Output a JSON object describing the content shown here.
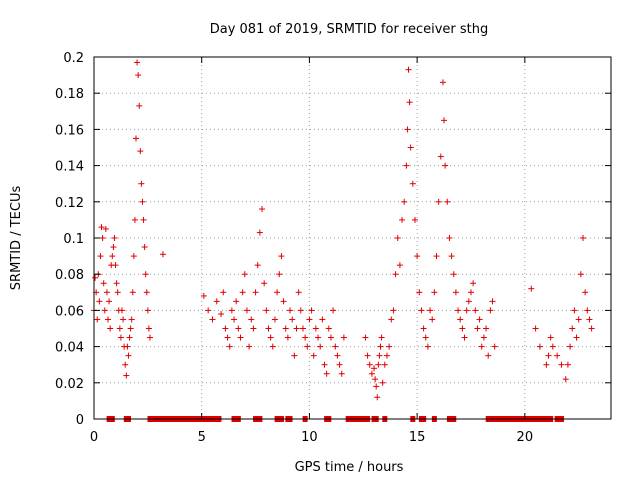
{
  "chart_data": {
    "type": "scatter",
    "title": "Day 081 of 2019, SRMTID for receiver sthg",
    "xlabel": "GPS time / hours",
    "ylabel": "SRMTID / TECUs",
    "xlim": [
      0,
      24
    ],
    "ylim": [
      0,
      0.2
    ],
    "xticks": [
      0,
      5,
      10,
      15,
      20
    ],
    "yticks": [
      0,
      0.02,
      0.04,
      0.06,
      0.08,
      0.1,
      0.12,
      0.14,
      0.16,
      0.18,
      0.2
    ],
    "ytick_labels": [
      "0",
      "0.02",
      "0.04",
      "0.06",
      "0.08",
      "0.1",
      "0.12",
      "0.14",
      "0.16",
      "0.18",
      "0.2"
    ],
    "grid": true,
    "color": "#e00000",
    "marker": "plus",
    "series": [
      {
        "name": "SRMTID",
        "x": [
          0.0,
          0.05,
          0.1,
          0.15,
          0.2,
          0.25,
          0.3,
          0.35,
          0.4,
          0.45,
          0.5,
          0.55,
          0.6,
          0.65,
          0.7,
          0.75,
          0.8,
          0.85,
          0.9,
          0.95,
          1.0,
          1.05,
          1.1,
          1.15,
          1.2,
          1.25,
          1.3,
          1.35,
          1.4,
          1.45,
          1.5,
          1.55,
          1.6,
          1.65,
          1.7,
          1.75,
          1.8,
          1.85,
          1.9,
          1.95,
          2.0,
          2.05,
          2.1,
          2.15,
          2.2,
          2.25,
          2.3,
          2.35,
          2.4,
          2.45,
          2.5,
          2.55,
          2.6,
          3.2,
          5.1,
          5.3,
          5.5,
          5.7,
          5.9,
          6.0,
          6.1,
          6.2,
          6.3,
          6.4,
          6.5,
          6.6,
          6.7,
          6.8,
          6.9,
          7.0,
          7.1,
          7.2,
          7.3,
          7.4,
          7.5,
          7.6,
          7.7,
          7.8,
          7.9,
          8.0,
          8.1,
          8.2,
          8.3,
          8.4,
          8.5,
          8.6,
          8.7,
          8.8,
          8.9,
          9.0,
          9.1,
          9.2,
          9.3,
          9.4,
          9.5,
          9.6,
          9.7,
          9.8,
          9.9,
          10.0,
          10.1,
          10.2,
          10.3,
          10.4,
          10.5,
          10.6,
          10.7,
          10.8,
          10.9,
          11.0,
          11.1,
          11.2,
          11.3,
          11.4,
          11.5,
          11.6,
          12.6,
          12.7,
          12.8,
          12.9,
          13.0,
          13.05,
          13.1,
          13.15,
          13.2,
          13.25,
          13.3,
          13.35,
          13.4,
          13.5,
          13.6,
          13.7,
          13.8,
          13.9,
          14.0,
          14.1,
          14.2,
          14.3,
          14.4,
          14.5,
          14.55,
          14.6,
          14.65,
          14.7,
          14.8,
          14.9,
          15.0,
          15.1,
          15.2,
          15.3,
          15.4,
          15.5,
          15.6,
          15.7,
          15.8,
          15.9,
          16.0,
          16.1,
          16.2,
          16.25,
          16.3,
          16.4,
          16.5,
          16.6,
          16.7,
          16.8,
          16.9,
          17.0,
          17.1,
          17.2,
          17.3,
          17.4,
          17.5,
          17.6,
          17.7,
          17.8,
          17.9,
          18.0,
          18.1,
          18.2,
          18.3,
          18.4,
          18.5,
          18.6,
          20.3,
          20.5,
          20.7,
          21.0,
          21.1,
          21.2,
          21.3,
          21.5,
          21.7,
          21.9,
          22.0,
          22.1,
          22.2,
          22.3,
          22.4,
          22.5,
          22.6,
          22.7,
          22.8,
          22.9,
          23.0,
          23.1
        ],
        "y": [
          0.06,
          0.078,
          0.07,
          0.055,
          0.08,
          0.065,
          0.09,
          0.106,
          0.1,
          0.075,
          0.06,
          0.105,
          0.07,
          0.055,
          0.065,
          0.05,
          0.085,
          0.09,
          0.095,
          0.1,
          0.085,
          0.075,
          0.07,
          0.06,
          0.05,
          0.045,
          0.06,
          0.055,
          0.04,
          0.03,
          0.024,
          0.04,
          0.035,
          0.045,
          0.05,
          0.055,
          0.07,
          0.09,
          0.11,
          0.155,
          0.197,
          0.19,
          0.173,
          0.148,
          0.13,
          0.12,
          0.11,
          0.095,
          0.08,
          0.07,
          0.06,
          0.05,
          0.045,
          0.091,
          0.068,
          0.06,
          0.055,
          0.065,
          0.058,
          0.07,
          0.05,
          0.045,
          0.04,
          0.06,
          0.055,
          0.065,
          0.05,
          0.045,
          0.07,
          0.08,
          0.06,
          0.04,
          0.055,
          0.05,
          0.07,
          0.085,
          0.103,
          0.116,
          0.075,
          0.06,
          0.05,
          0.045,
          0.04,
          0.055,
          0.07,
          0.08,
          0.09,
          0.065,
          0.05,
          0.045,
          0.06,
          0.055,
          0.035,
          0.05,
          0.07,
          0.06,
          0.05,
          0.045,
          0.04,
          0.055,
          0.06,
          0.035,
          0.05,
          0.045,
          0.04,
          0.055,
          0.03,
          0.025,
          0.05,
          0.045,
          0.06,
          0.04,
          0.035,
          0.03,
          0.025,
          0.045,
          0.045,
          0.035,
          0.03,
          0.025,
          0.028,
          0.022,
          0.018,
          0.012,
          0.03,
          0.035,
          0.04,
          0.045,
          0.02,
          0.03,
          0.035,
          0.04,
          0.055,
          0.06,
          0.08,
          0.1,
          0.085,
          0.11,
          0.12,
          0.14,
          0.16,
          0.193,
          0.175,
          0.15,
          0.13,
          0.11,
          0.09,
          0.07,
          0.06,
          0.05,
          0.045,
          0.04,
          0.06,
          0.055,
          0.07,
          0.09,
          0.12,
          0.145,
          0.186,
          0.165,
          0.14,
          0.12,
          0.1,
          0.09,
          0.08,
          0.07,
          0.06,
          0.055,
          0.05,
          0.045,
          0.06,
          0.065,
          0.07,
          0.075,
          0.06,
          0.05,
          0.055,
          0.04,
          0.045,
          0.05,
          0.035,
          0.06,
          0.065,
          0.04,
          0.072,
          0.05,
          0.04,
          0.03,
          0.035,
          0.045,
          0.04,
          0.035,
          0.03,
          0.022,
          0.03,
          0.04,
          0.05,
          0.06,
          0.045,
          0.055,
          0.08,
          0.1,
          0.07,
          0.06,
          0.055,
          0.05
        ]
      }
    ],
    "gap_marks_x": [
      0.7,
      0.75,
      0.8,
      0.85,
      1.5,
      1.55,
      1.6,
      2.6,
      2.7,
      2.8,
      2.9,
      3.0,
      3.1,
      3.2,
      3.3,
      3.4,
      3.5,
      3.6,
      3.7,
      3.8,
      3.9,
      4.0,
      4.1,
      4.2,
      4.3,
      4.4,
      4.5,
      4.6,
      4.7,
      4.8,
      4.9,
      5.0,
      5.1,
      5.2,
      5.3,
      5.4,
      5.5,
      5.6,
      5.7,
      5.8,
      6.5,
      6.7,
      7.5,
      7.7,
      8.5,
      8.7,
      9.0,
      9.1,
      9.8,
      10.8,
      10.9,
      11.8,
      11.9,
      12.0,
      12.1,
      12.2,
      12.3,
      12.4,
      12.5,
      12.6,
      12.7,
      13.0,
      13.1,
      13.5,
      14.8,
      15.2,
      15.3,
      15.8,
      16.5,
      16.6,
      16.7,
      18.3,
      18.4,
      18.5,
      18.6,
      18.7,
      18.8,
      18.9,
      19.0,
      19.1,
      19.2,
      19.3,
      19.4,
      19.5,
      19.6,
      19.7,
      19.8,
      19.9,
      20.0,
      20.1,
      20.2,
      20.3,
      20.4,
      20.5,
      20.6,
      20.7,
      20.8,
      20.9,
      21.0,
      21.1,
      21.2,
      21.5,
      21.6,
      21.7
    ]
  }
}
